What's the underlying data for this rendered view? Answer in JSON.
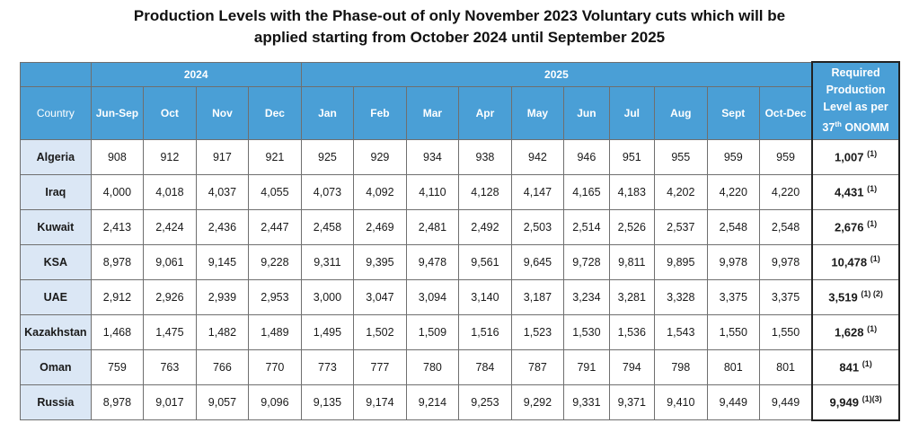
{
  "title": {
    "line1": "Production Levels with the Phase-out of only November 2023 Voluntary cuts which will be",
    "line2": "applied starting from October 2024 until September 2025"
  },
  "header": {
    "year_2024": "2024",
    "year_2025": "2025",
    "country": "Country",
    "months": [
      "Jun-Sep",
      "Oct",
      "Nov",
      "Dec",
      "Jan",
      "Feb",
      "Mar",
      "Apr",
      "May",
      "Jun",
      "Jul",
      "Aug",
      "Sept",
      "Oct-Dec"
    ],
    "required": {
      "line1": "Required",
      "line2": "Production",
      "line3": "Level as per",
      "line4_num": "37",
      "line4_sup": "th",
      "line4_text": " ONOMM"
    }
  },
  "rows": [
    {
      "country": "Algeria",
      "values": [
        "908",
        "912",
        "917",
        "921",
        "925",
        "929",
        "934",
        "938",
        "942",
        "946",
        "951",
        "955",
        "959",
        "959"
      ],
      "required": "1,007",
      "note": "(1)"
    },
    {
      "country": "Iraq",
      "values": [
        "4,000",
        "4,018",
        "4,037",
        "4,055",
        "4,073",
        "4,092",
        "4,110",
        "4,128",
        "4,147",
        "4,165",
        "4,183",
        "4,202",
        "4,220",
        "4,220"
      ],
      "required": "4,431",
      "note": "(1)"
    },
    {
      "country": "Kuwait",
      "values": [
        "2,413",
        "2,424",
        "2,436",
        "2,447",
        "2,458",
        "2,469",
        "2,481",
        "2,492",
        "2,503",
        "2,514",
        "2,526",
        "2,537",
        "2,548",
        "2,548"
      ],
      "required": "2,676",
      "note": "(1)"
    },
    {
      "country": "KSA",
      "values": [
        "8,978",
        "9,061",
        "9,145",
        "9,228",
        "9,311",
        "9,395",
        "9,478",
        "9,561",
        "9,645",
        "9,728",
        "9,811",
        "9,895",
        "9,978",
        "9,978"
      ],
      "required": "10,478",
      "note": "(1)"
    },
    {
      "country": "UAE",
      "values": [
        "2,912",
        "2,926",
        "2,939",
        "2,953",
        "3,000",
        "3,047",
        "3,094",
        "3,140",
        "3,187",
        "3,234",
        "3,281",
        "3,328",
        "3,375",
        "3,375"
      ],
      "required": "3,519",
      "note": "(1) (2)"
    },
    {
      "country": "Kazakhstan",
      "values": [
        "1,468",
        "1,475",
        "1,482",
        "1,489",
        "1,495",
        "1,502",
        "1,509",
        "1,516",
        "1,523",
        "1,530",
        "1,536",
        "1,543",
        "1,550",
        "1,550"
      ],
      "required": "1,628",
      "note": "(1)"
    },
    {
      "country": "Oman",
      "values": [
        "759",
        "763",
        "766",
        "770",
        "773",
        "777",
        "780",
        "784",
        "787",
        "791",
        "794",
        "798",
        "801",
        "801"
      ],
      "required": "841",
      "note": "(1)"
    },
    {
      "country": "Russia",
      "values": [
        "8,978",
        "9,017",
        "9,057",
        "9,096",
        "9,135",
        "9,174",
        "9,214",
        "9,253",
        "9,292",
        "9,331",
        "9,371",
        "9,410",
        "9,449",
        "9,449"
      ],
      "required": "9,949",
      "note": "(1)(3)"
    }
  ]
}
